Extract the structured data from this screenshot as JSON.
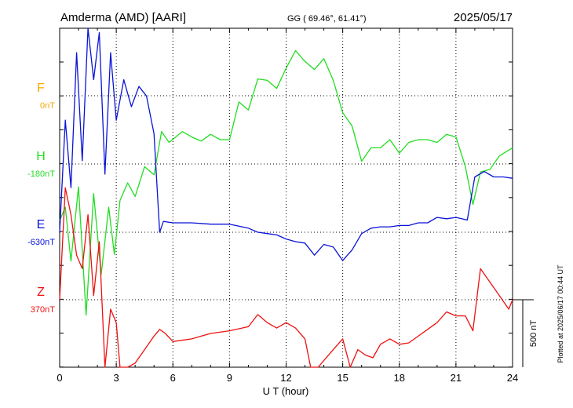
{
  "header": {
    "station": "Amderma (AMD)  [AARI]",
    "coords": "GG ( 69.46°,  61.41°)",
    "date": "2025/05/17"
  },
  "footer": {
    "plotted": "Plotted at 2025/06/17 00:44 UT"
  },
  "colors": {
    "F": "#f2a900",
    "H": "#22dd22",
    "E": "#0a14d6",
    "Z": "#ee1111",
    "axis": "#000000",
    "grid": "#000000"
  },
  "chart_data": {
    "type": "line",
    "title": "Amderma (AMD)  [AARI]",
    "xlabel": "U T (hour)",
    "ylabel": "",
    "xlim": [
      0,
      24
    ],
    "x_ticks": [
      "0",
      "3",
      "6",
      "9",
      "12",
      "15",
      "18",
      "21",
      "24"
    ],
    "scale_bar": "500 nT",
    "channels": [
      {
        "name": "F",
        "baseline": "0nT"
      },
      {
        "name": "H",
        "baseline": "-180nT"
      },
      {
        "name": "E",
        "baseline": "-630nT"
      },
      {
        "name": "Z",
        "baseline": "370nT"
      }
    ],
    "series": [
      {
        "name": "H",
        "x": [
          0,
          0.3,
          0.6,
          1.0,
          1.4,
          1.8,
          2.2,
          2.6,
          2.9,
          3.2,
          3.6,
          4.0,
          4.5,
          5.0,
          5.4,
          5.8,
          6.5,
          7.0,
          7.5,
          8.0,
          8.5,
          9.0,
          9.5,
          10.0,
          10.5,
          11.0,
          11.5,
          12.0,
          12.5,
          13.0,
          13.5,
          14.0,
          14.5,
          15.0,
          15.5,
          16.0,
          16.5,
          17.0,
          17.5,
          18.0,
          18.5,
          19.0,
          19.5,
          20.0,
          20.5,
          21.0,
          21.5,
          21.9,
          22.3,
          22.8,
          23.3,
          24.0
        ],
        "values": [
          -600,
          -500,
          -900,
          -350,
          -1300,
          -400,
          -1000,
          -500,
          -850,
          -450,
          -320,
          -420,
          -200,
          -260,
          60,
          -20,
          60,
          20,
          -10,
          40,
          0,
          0,
          280,
          220,
          450,
          440,
          380,
          530,
          660,
          580,
          520,
          600,
          440,
          200,
          100,
          -160,
          -60,
          -60,
          0,
          -100,
          -20,
          0,
          0,
          -20,
          40,
          20,
          -200,
          -480,
          -240,
          -220,
          -120,
          -60
        ]
      },
      {
        "name": "E",
        "x": [
          0,
          0.3,
          0.6,
          0.9,
          1.2,
          1.5,
          1.8,
          2.1,
          2.4,
          2.7,
          3.0,
          3.4,
          3.8,
          4.2,
          4.6,
          5.0,
          5.3,
          5.5,
          6.0,
          7.0,
          8.0,
          9.0,
          10.0,
          10.5,
          11.0,
          11.5,
          12.0,
          12.5,
          13.0,
          13.5,
          14.0,
          14.5,
          15.0,
          15.5,
          16.0,
          16.5,
          17.0,
          17.5,
          18.0,
          18.5,
          19.0,
          19.5,
          20.0,
          20.5,
          21.0,
          21.3,
          21.6,
          22.0,
          22.5,
          23.0,
          23.5,
          24.0
        ],
        "values": [
          -630,
          200,
          -300,
          700,
          -100,
          1150,
          500,
          850,
          -200,
          700,
          200,
          500,
          300,
          450,
          380,
          100,
          -630,
          -550,
          -560,
          -560,
          -570,
          -570,
          -600,
          -630,
          -640,
          -650,
          -680,
          -700,
          -710,
          -800,
          -720,
          -740,
          -840,
          -760,
          -640,
          -600,
          -590,
          -590,
          -580,
          -580,
          -560,
          -560,
          -520,
          -530,
          -520,
          -530,
          -540,
          -220,
          -180,
          -220,
          -220,
          -230
        ]
      },
      {
        "name": "Z",
        "x": [
          0,
          0.3,
          0.6,
          0.9,
          1.2,
          1.5,
          1.8,
          2.1,
          2.4,
          2.7,
          3.0,
          3.2,
          3.6,
          4.0,
          4.5,
          5.0,
          5.3,
          5.6,
          6.0,
          7.0,
          8.0,
          9.0,
          10.0,
          10.5,
          11.0,
          11.5,
          12.0,
          12.5,
          13.0,
          13.3,
          13.7,
          14.0,
          14.5,
          15.0,
          15.4,
          15.8,
          16.2,
          16.6,
          17.0,
          17.5,
          18.0,
          18.5,
          19.0,
          19.5,
          20.0,
          20.5,
          21.0,
          21.5,
          21.9,
          22.3,
          22.8,
          23.3,
          23.8,
          24.0
        ],
        "values": [
          370,
          1200,
          1000,
          700,
          600,
          1000,
          400,
          800,
          -200,
          300,
          200,
          -250,
          -200,
          -100,
          0,
          100,
          150,
          120,
          60,
          80,
          120,
          140,
          170,
          260,
          200,
          160,
          200,
          160,
          80,
          -200,
          -150,
          -80,
          0,
          80,
          -200,
          0,
          -40,
          -60,
          40,
          80,
          40,
          50,
          100,
          150,
          200,
          280,
          250,
          250,
          140,
          600,
          500,
          400,
          300,
          370
        ]
      }
    ]
  }
}
